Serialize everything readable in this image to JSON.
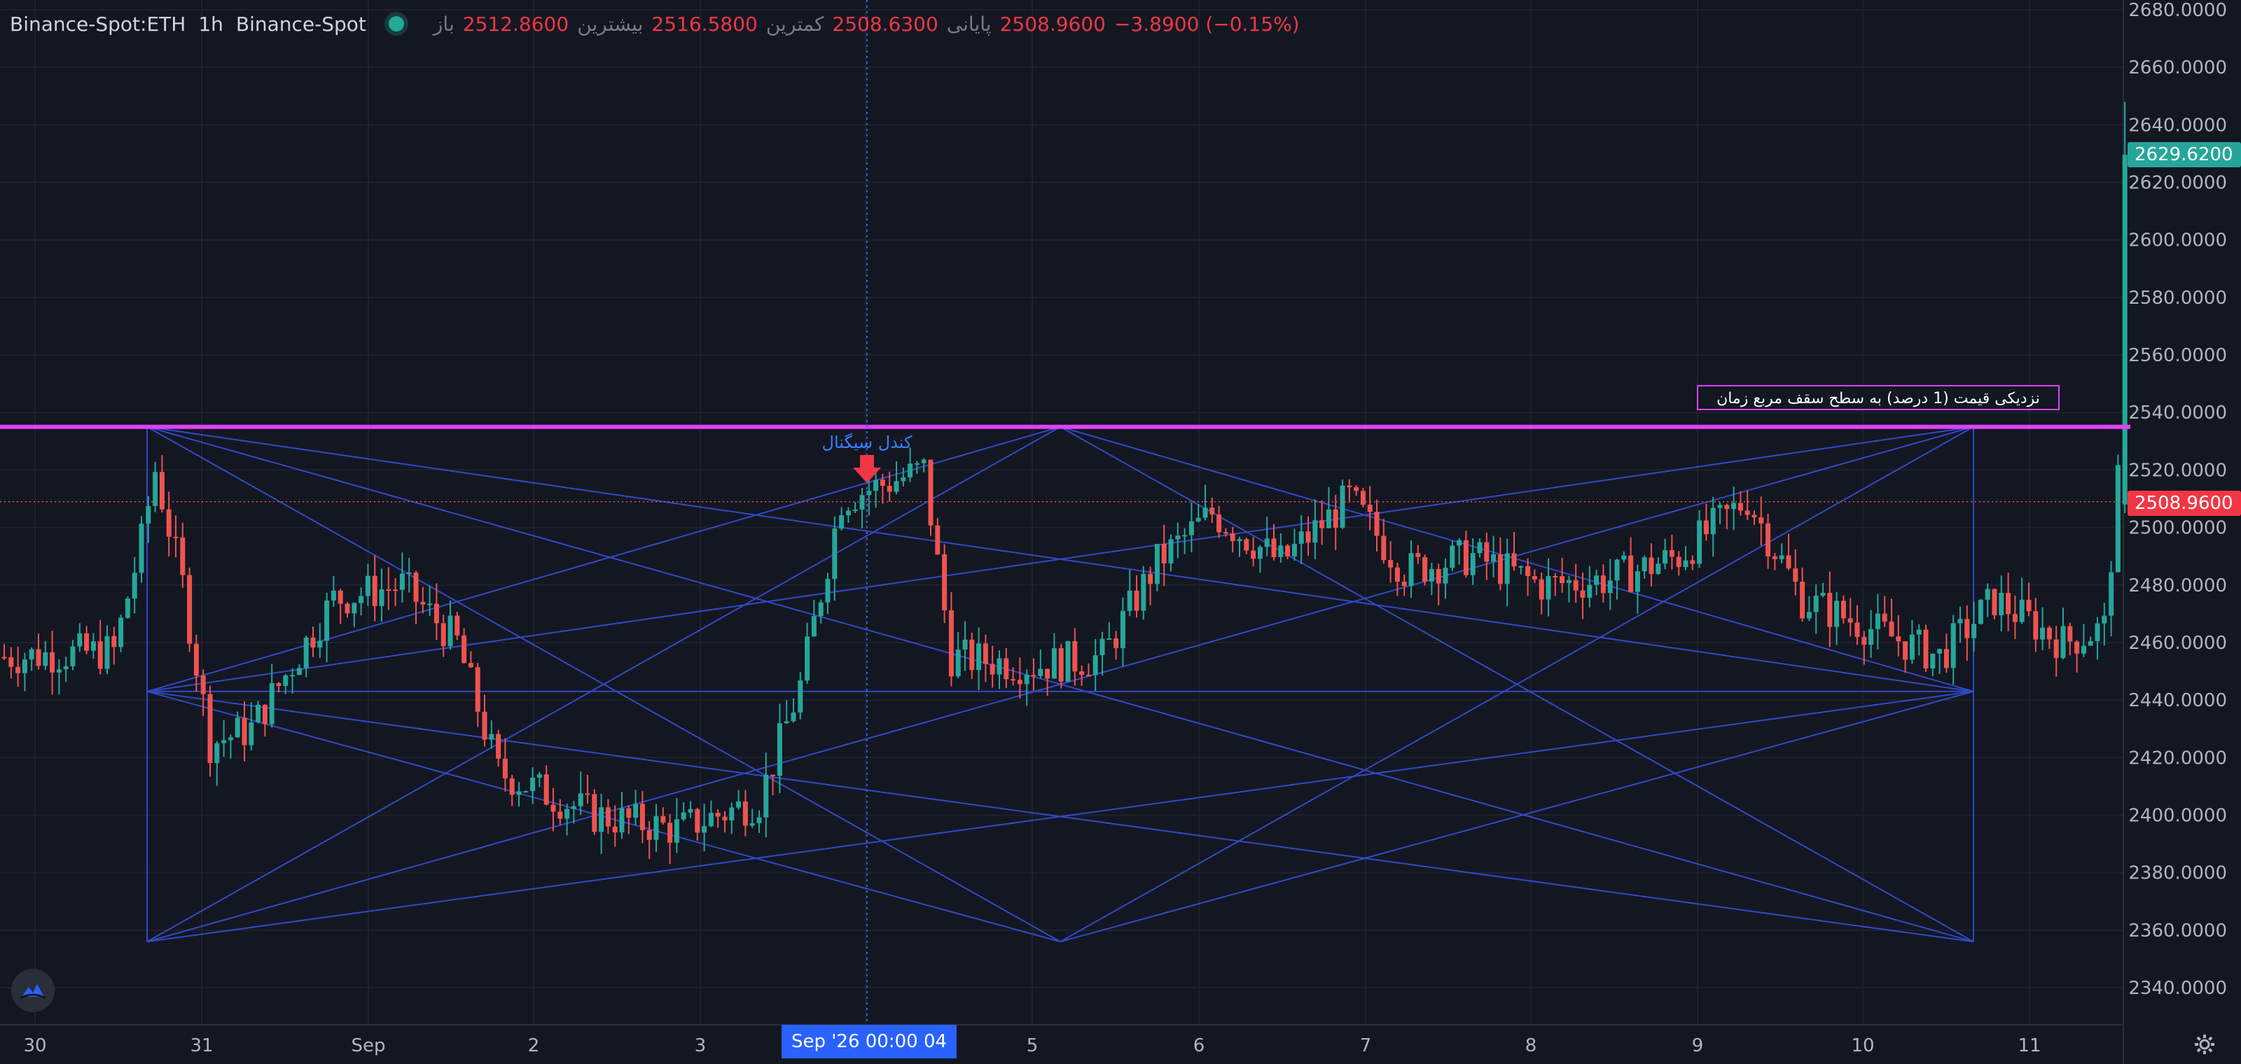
{
  "header": {
    "symbol": "Binance-Spot:ETH",
    "interval": "1h",
    "exchange": "Binance-Spot",
    "open_label": "باز",
    "open_value": "2512.8600",
    "high_label": "بیشترین",
    "high_value": "2516.5800",
    "low_label": "کمترین",
    "low_value": "2508.6300",
    "close_label": "پایانی",
    "close_value": "2508.9600",
    "change": "−3.8900 (−0.15%)"
  },
  "labels": {
    "current_price": "2629.6200",
    "crosshair_price": "2508.9600",
    "crosshair_time": "Sep '26   00:00 04",
    "signal_text": "کندل سیگنال",
    "annotation_text": "نزدیکی قیمت (1 درصد) به سطح سقف مربع زمان"
  },
  "colors": {
    "up": "#26a69a",
    "down": "#ef5350",
    "resistance": "#e040fb",
    "pattern_lines": "#3d5afe",
    "crosshair": "#2962ff",
    "current_price_bg": "#26a69a",
    "crosshair_price_bg": "#f23645"
  },
  "icons": {
    "logo": "tradingview-cloud-icon",
    "settings": "gear-icon",
    "signal": "down-arrow-icon"
  },
  "chart_data": {
    "type": "candlestick",
    "interval": "1h",
    "y_axis": {
      "range": [
        2330,
        2685
      ],
      "ticks": [
        "2340.0000",
        "2360.0000",
        "2380.0000",
        "2400.0000",
        "2420.0000",
        "2440.0000",
        "2460.0000",
        "2480.0000",
        "2500.0000",
        "2520.0000",
        "2540.0000",
        "2560.0000",
        "2580.0000",
        "2600.0000",
        "2620.0000",
        "2640.0000",
        "2660.0000",
        "2680.0000"
      ]
    },
    "x_axis": {
      "ticks": [
        "30",
        "31",
        "Sep",
        "2",
        "3",
        "4",
        "5",
        "6",
        "7",
        "8",
        "9",
        "10",
        "11"
      ]
    },
    "resistance_level": 2535,
    "pattern_peaks": [
      2535,
      2535,
      2535,
      2535
    ],
    "pattern_troughs": [
      2356,
      2356,
      2356
    ],
    "pattern_mid": 2443,
    "close_path_anchors": [
      [
        0,
        2455
      ],
      [
        16,
        2457
      ],
      [
        20,
        2495
      ],
      [
        22,
        2520
      ],
      [
        26,
        2480
      ],
      [
        30,
        2425
      ],
      [
        36,
        2430
      ],
      [
        48,
        2475
      ],
      [
        58,
        2480
      ],
      [
        66,
        2460
      ],
      [
        72,
        2415
      ],
      [
        86,
        2400
      ],
      [
        98,
        2395
      ],
      [
        110,
        2405
      ],
      [
        116,
        2445
      ],
      [
        122,
        2510
      ],
      [
        128,
        2515
      ],
      [
        134,
        2520
      ],
      [
        138,
        2455
      ],
      [
        150,
        2452
      ],
      [
        160,
        2455
      ],
      [
        168,
        2488
      ],
      [
        176,
        2505
      ],
      [
        186,
        2488
      ],
      [
        196,
        2510
      ],
      [
        204,
        2485
      ],
      [
        214,
        2490
      ],
      [
        224,
        2480
      ],
      [
        234,
        2482
      ],
      [
        244,
        2490
      ],
      [
        254,
        2510
      ],
      [
        262,
        2475
      ],
      [
        272,
        2465
      ],
      [
        282,
        2455
      ],
      [
        290,
        2475
      ],
      [
        300,
        2460
      ],
      [
        306,
        2465
      ],
      [
        308,
        2515
      ]
    ],
    "last_candle": {
      "open": 2508,
      "high": 2648,
      "low": 2505,
      "close": 2629.62
    }
  }
}
